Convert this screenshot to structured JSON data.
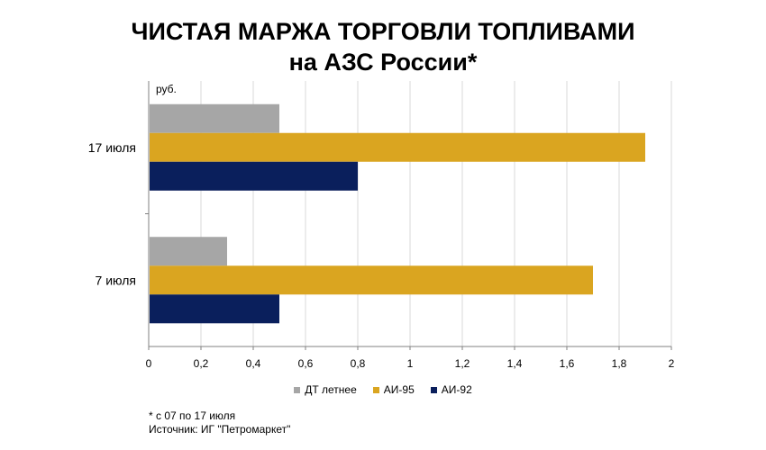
{
  "title_line1": "ЧИСТАЯ МАРЖА ТОРГОВЛИ ТОПЛИВАМИ",
  "title_line2": "на АЗС России*",
  "footnote_line1": "* с 07 по 17 июля",
  "footnote_line2": "Источник: ИГ \"Петромаркет\"",
  "chart_data": {
    "type": "bar",
    "orientation": "horizontal",
    "unit_label": "руб.",
    "categories": [
      "17 июля",
      "7 июля"
    ],
    "series": [
      {
        "name": "ДТ летнее",
        "color": "#a6a6a6",
        "values": [
          0.5,
          0.3
        ]
      },
      {
        "name": "АИ-95",
        "color": "#daa520",
        "values": [
          1.9,
          1.7
        ]
      },
      {
        "name": "АИ-92",
        "color": "#0a1f5c",
        "values": [
          0.8,
          0.5
        ]
      }
    ],
    "xlim": [
      0,
      2
    ],
    "xticks": [
      "0",
      "0,2",
      "0,4",
      "0,6",
      "0,8",
      "1",
      "1,2",
      "1,4",
      "1,6",
      "1,8",
      "2"
    ],
    "grid": true,
    "legend_position": "bottom"
  }
}
